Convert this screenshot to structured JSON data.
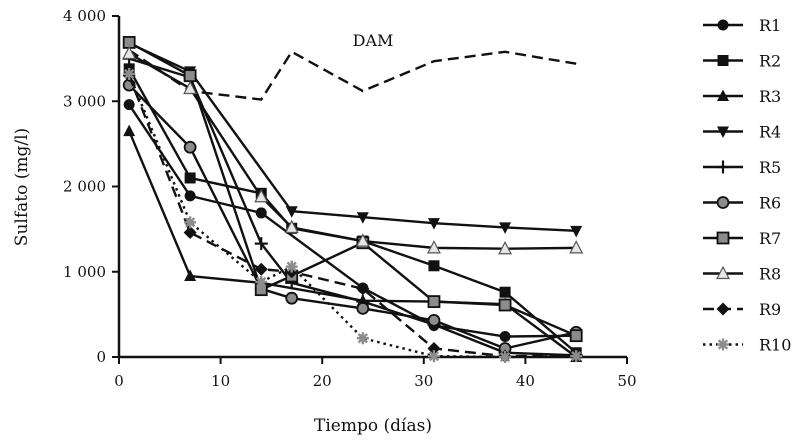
{
  "chart_data": {
    "type": "line",
    "title": "",
    "xlabel": "Tiempo (días)",
    "ylabel": "Sulfato (mg/l)",
    "xlim": [
      0,
      50
    ],
    "ylim": [
      0,
      4000
    ],
    "xticks": [
      0,
      10,
      20,
      30,
      40,
      50
    ],
    "xtick_labels": [
      "0",
      "10",
      "20",
      "30",
      "40",
      "50"
    ],
    "yticks": [
      0,
      1000,
      2000,
      3000,
      4000
    ],
    "ytick_labels": [
      "0",
      "1 000",
      "2 000",
      "3 000",
      "4 000"
    ],
    "grid": false,
    "legend_position": "right",
    "annotations": [
      {
        "text": "DAM",
        "x": 25,
        "y": 3650
      }
    ],
    "series": [
      {
        "name": "",
        "style": "dashed",
        "marker": "none",
        "color": "#111111",
        "x": [
          1,
          7,
          14,
          17,
          24,
          31,
          38,
          45
        ],
        "y": [
          3600,
          3120,
          3020,
          3580,
          3120,
          3470,
          3580,
          3440
        ]
      },
      {
        "name": "R1",
        "marker": "circle",
        "style": "solid",
        "color": "#111111",
        "x": [
          1,
          7,
          14,
          24,
          31,
          38,
          45
        ],
        "y": [
          2960,
          1890,
          1690,
          810,
          370,
          240,
          250
        ]
      },
      {
        "name": "R2",
        "marker": "square",
        "style": "solid",
        "color": "#111111",
        "x": [
          1,
          7,
          14,
          17,
          24,
          31,
          38,
          45
        ],
        "y": [
          3380,
          2100,
          1920,
          1510,
          1360,
          1070,
          760,
          50
        ]
      },
      {
        "name": "R3",
        "marker": "triangle-up",
        "style": "solid",
        "color": "#111111",
        "x": [
          1,
          7,
          14,
          24,
          31,
          38,
          45
        ],
        "y": [
          2650,
          950,
          870,
          660,
          650,
          620,
          0
        ]
      },
      {
        "name": "R4",
        "marker": "triangle-down",
        "style": "solid",
        "color": "#111111",
        "x": [
          1,
          7,
          17,
          24,
          31,
          38,
          45
        ],
        "y": [
          3680,
          3350,
          1710,
          1640,
          1570,
          1520,
          1480
        ]
      },
      {
        "name": "R5",
        "marker": "plus",
        "style": "solid",
        "color": "#111111",
        "x": [
          1,
          7,
          14,
          17,
          24,
          31,
          38,
          45
        ],
        "y": [
          3500,
          3280,
          1330,
          870,
          650,
          380,
          50,
          20
        ]
      },
      {
        "name": "R6",
        "marker": "circle-gray",
        "style": "solid",
        "color": "#111111",
        "x": [
          1,
          7,
          14,
          17,
          24,
          31,
          38,
          45
        ],
        "y": [
          3190,
          2460,
          800,
          690,
          570,
          430,
          100,
          290
        ]
      },
      {
        "name": "R7",
        "marker": "square-gray",
        "style": "solid",
        "color": "#111111",
        "x": [
          1,
          7,
          14,
          17,
          24,
          31,
          38,
          45
        ],
        "y": [
          3690,
          3300,
          790,
          950,
          1340,
          650,
          610,
          250
        ]
      },
      {
        "name": "R8",
        "marker": "triangle-gray",
        "style": "solid",
        "color": "#111111",
        "x": [
          1,
          7,
          14,
          17,
          24,
          31,
          38,
          45
        ],
        "y": [
          3560,
          3150,
          1880,
          1520,
          1360,
          1280,
          1270,
          1280
        ]
      },
      {
        "name": "R9",
        "marker": "diamond",
        "style": "dashed",
        "color": "#111111",
        "x": [
          1,
          7,
          14,
          17,
          24,
          31,
          38,
          45
        ],
        "y": [
          3300,
          1460,
          1030,
          1000,
          800,
          100,
          10,
          20
        ]
      },
      {
        "name": "R10",
        "marker": "asterisk-gray",
        "style": "dotted",
        "color": "#111111",
        "x": [
          1,
          7,
          14,
          17,
          24,
          31,
          38,
          45
        ],
        "y": [
          3320,
          1580,
          880,
          1060,
          220,
          10,
          0,
          10
        ]
      }
    ]
  }
}
